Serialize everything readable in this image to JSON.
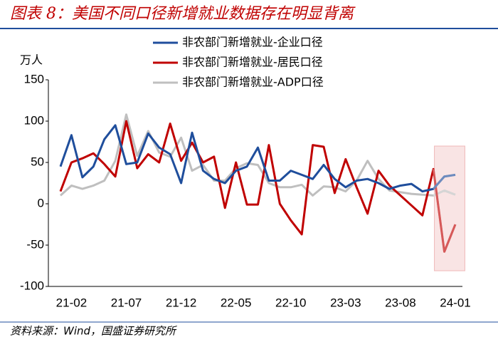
{
  "chart_data": {
    "type": "line",
    "title": "图表 8：美国不同口径新增就业数据存在明显背离",
    "y_label": "万人",
    "source": "资料来源：Wind，国盛证券研究所",
    "categories": [
      null,
      "21-02",
      null,
      null,
      null,
      null,
      "21-07",
      null,
      null,
      null,
      null,
      "21-12",
      null,
      null,
      null,
      null,
      "22-05",
      null,
      null,
      null,
      null,
      "22-10",
      null,
      null,
      null,
      null,
      "23-03",
      null,
      null,
      null,
      null,
      "23-08",
      null,
      null,
      null,
      null,
      "24-01"
    ],
    "series": [
      {
        "name": "非农部门新增就业-企业口径",
        "color": "#1f4e9c",
        "values": [
          45,
          83,
          32,
          45,
          78,
          95,
          48,
          50,
          85,
          68,
          60,
          25,
          86,
          40,
          30,
          25,
          40,
          45,
          68,
          28,
          28,
          40,
          35,
          30,
          47,
          30,
          20,
          28,
          30,
          25,
          18,
          22,
          24,
          15,
          18,
          33,
          35
        ]
      },
      {
        "name": "非农部门新增就业-居民口径",
        "color": "#c00000",
        "values": [
          15,
          50,
          55,
          61,
          48,
          33,
          100,
          43,
          60,
          50,
          97,
          52,
          74,
          50,
          57,
          -5,
          50,
          -1,
          -1,
          71,
          0,
          -20,
          -37,
          71,
          69,
          13,
          54,
          20,
          -12,
          40,
          22,
          10,
          -2,
          -14,
          42,
          -58,
          -25
        ]
      },
      {
        "name": "非农部门新增就业-ADP口径",
        "color": "#bfbfbf",
        "values": [
          10,
          22,
          18,
          22,
          28,
          52,
          108,
          58,
          88,
          62,
          57,
          80,
          40,
          47,
          28,
          28,
          43,
          49,
          47,
          25,
          20,
          20,
          23,
          10,
          21,
          20,
          15,
          28,
          52,
          30,
          16,
          14,
          12,
          11,
          10,
          16,
          11
        ]
      }
    ],
    "ylim": [
      -100,
      150
    ],
    "yticks": [
      -100,
      -50,
      0,
      50,
      100,
      150
    ]
  }
}
